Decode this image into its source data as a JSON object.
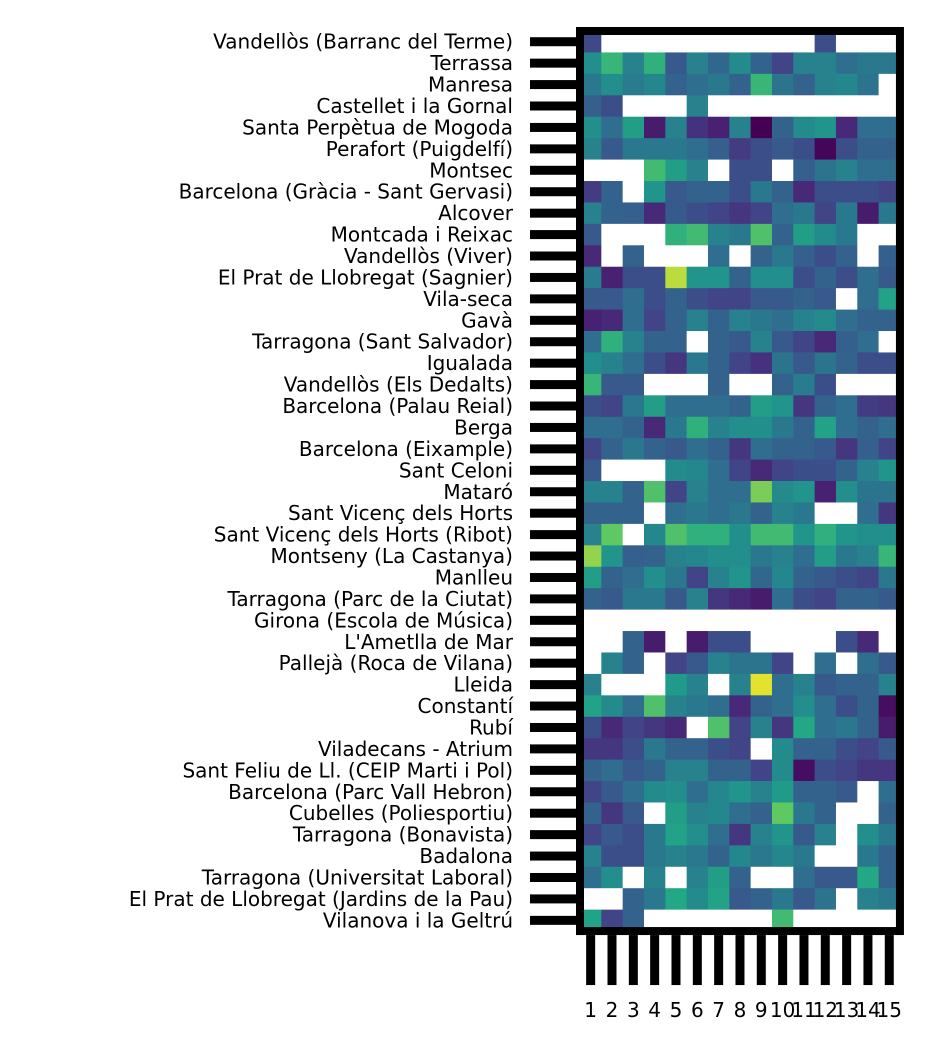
{
  "chart_data": {
    "type": "heatmap",
    "title": "",
    "xlabel": "",
    "ylabel": "",
    "colormap": "viridis",
    "missing_color": "#ffffff",
    "frame_color": "#000000",
    "grid": false,
    "legend": "none",
    "value_range": [
      0,
      1
    ],
    "value_scale_note": "relative intensity 0=dark purple, 1=yellow",
    "x_categories": [
      "1",
      "2",
      "3",
      "4",
      "5",
      "6",
      "7",
      "8",
      "9",
      "10",
      "11",
      "12",
      "13",
      "14",
      "15"
    ],
    "y_categories": [
      "Vandellòs (Barranc del Terme)",
      "Terrassa",
      "Manresa",
      "Castellet i la Gornal",
      "Santa Perpètua de Mogoda",
      "Perafort (Puigdelfí)",
      "Montsec",
      "Barcelona (Gràcia - Sant Gervasi)",
      "Alcover",
      "Montcada i Reixac",
      "Vandellòs (Viver)",
      "El Prat de Llobregat (Sagnier)",
      "Vila-seca",
      "Gavà",
      "Tarragona (Sant Salvador)",
      "Igualada",
      "Vandellòs (Els Dedalts)",
      "Barcelona (Palau Reial)",
      "Berga",
      "Barcelona (Eixample)",
      "Sant Celoni",
      "Mataró",
      "Sant Vicenç dels Horts",
      "Sant Vicenç dels Horts (Ribot)",
      "Montseny (La Castanya)",
      "Manlleu",
      "Tarragona (Parc de la Ciutat)",
      "Girona (Escola de Música)",
      "L'Ametlla de Mar",
      "Pallejà (Roca de Vilana)",
      "Lleida",
      "Constantí",
      "Rubí",
      "Viladecans - Atrium",
      "Sant Feliu de Ll. (CEIP Marti i Pol)",
      "Barcelona (Parc Vall Hebron)",
      "Cubelles (Poliesportiu)",
      "Tarragona (Bonavista)",
      "Badalona",
      "Tarragona (Universitat Laboral)",
      "El Prat de Llobregat (Jardins de la Pau)",
      "Vilanova i la Geltrú"
    ],
    "values": [
      [
        0.28,
        null,
        null,
        null,
        null,
        null,
        null,
        null,
        null,
        null,
        null,
        0.3,
        null,
        null,
        null
      ],
      [
        0.62,
        0.8,
        0.55,
        0.78,
        0.35,
        0.55,
        0.42,
        0.6,
        0.4,
        0.25,
        0.55,
        0.55,
        0.45,
        0.5,
        0.5
      ],
      [
        0.5,
        0.62,
        0.52,
        0.58,
        0.4,
        0.45,
        0.5,
        0.4,
        0.8,
        0.48,
        0.4,
        0.55,
        0.58,
        0.48,
        null
      ],
      [
        0.38,
        0.3,
        null,
        null,
        null,
        0.55,
        null,
        null,
        null,
        null,
        null,
        null,
        null,
        null,
        null
      ],
      [
        0.62,
        0.45,
        0.7,
        0.1,
        0.55,
        0.18,
        0.12,
        0.55,
        0.0,
        0.4,
        0.6,
        0.65,
        0.15,
        0.45,
        0.45
      ],
      [
        0.55,
        0.35,
        0.5,
        0.5,
        0.5,
        0.45,
        0.38,
        0.22,
        0.3,
        0.35,
        0.3,
        0.02,
        0.3,
        0.4,
        0.4
      ],
      [
        null,
        null,
        null,
        0.82,
        0.7,
        0.55,
        null,
        0.3,
        0.3,
        null,
        0.38,
        0.48,
        0.55,
        0.45,
        0.45
      ],
      [
        0.22,
        0.4,
        null,
        0.65,
        0.35,
        0.4,
        0.4,
        0.3,
        0.5,
        0.4,
        0.15,
        0.3,
        0.3,
        0.3,
        0.25
      ],
      [
        0.55,
        0.4,
        0.38,
        0.15,
        0.35,
        0.3,
        0.25,
        0.2,
        0.25,
        0.45,
        0.5,
        0.25,
        0.5,
        0.1,
        0.5
      ],
      [
        0.35,
        null,
        null,
        null,
        0.78,
        0.82,
        0.55,
        0.5,
        0.85,
        0.4,
        0.7,
        0.6,
        0.5,
        null,
        null
      ],
      [
        0.15,
        null,
        0.4,
        null,
        null,
        null,
        0.45,
        null,
        0.4,
        0.5,
        0.38,
        0.3,
        0.4,
        null,
        0.38
      ],
      [
        0.52,
        0.12,
        0.3,
        0.3,
        0.95,
        0.65,
        0.65,
        0.4,
        0.62,
        0.62,
        0.3,
        0.4,
        0.3,
        0.45,
        0.35
      ],
      [
        0.35,
        0.35,
        0.45,
        0.3,
        0.4,
        0.3,
        0.25,
        0.25,
        0.35,
        0.35,
        0.4,
        0.35,
        null,
        0.45,
        0.72
      ],
      [
        0.12,
        0.15,
        0.45,
        0.25,
        0.4,
        0.55,
        0.4,
        0.55,
        0.5,
        0.45,
        0.55,
        0.6,
        0.45,
        0.4,
        0.4
      ],
      [
        0.45,
        0.78,
        0.55,
        0.4,
        0.4,
        null,
        0.4,
        0.35,
        0.55,
        0.35,
        0.25,
        0.15,
        0.38,
        0.45,
        null
      ],
      [
        0.62,
        0.55,
        0.45,
        0.3,
        0.2,
        0.5,
        0.4,
        0.25,
        0.18,
        0.48,
        0.35,
        0.48,
        0.4,
        0.3,
        0.3
      ],
      [
        0.8,
        0.35,
        0.35,
        null,
        null,
        null,
        0.4,
        null,
        null,
        0.4,
        0.52,
        0.3,
        null,
        null,
        null
      ],
      [
        0.3,
        0.25,
        0.5,
        0.7,
        0.45,
        0.45,
        0.45,
        0.4,
        0.7,
        0.65,
        0.2,
        0.4,
        0.45,
        0.22,
        0.2
      ],
      [
        0.45,
        0.45,
        0.4,
        0.15,
        0.5,
        0.78,
        0.55,
        0.62,
        0.62,
        0.5,
        0.4,
        0.72,
        0.45,
        0.4,
        0.45
      ],
      [
        0.25,
        0.4,
        0.5,
        0.4,
        0.35,
        0.45,
        0.4,
        0.2,
        0.45,
        0.4,
        0.4,
        0.35,
        0.2,
        0.38,
        0.25
      ],
      [
        0.35,
        null,
        null,
        null,
        0.6,
        0.58,
        0.45,
        0.25,
        0.15,
        0.25,
        0.3,
        0.3,
        0.4,
        0.55,
        0.65
      ],
      [
        0.55,
        0.55,
        0.4,
        0.85,
        0.25,
        0.55,
        0.45,
        0.45,
        0.9,
        0.6,
        0.65,
        0.12,
        0.62,
        0.48,
        0.48
      ],
      [
        0.4,
        0.4,
        0.4,
        null,
        0.45,
        0.5,
        0.45,
        0.5,
        0.4,
        0.55,
        0.5,
        null,
        null,
        0.45,
        0.2
      ],
      [
        0.55,
        0.88,
        null,
        0.58,
        0.85,
        0.78,
        0.78,
        0.62,
        0.82,
        0.82,
        0.65,
        0.78,
        0.65,
        0.62,
        0.62
      ],
      [
        0.92,
        0.65,
        0.38,
        0.4,
        0.55,
        0.58,
        0.62,
        0.62,
        0.5,
        0.55,
        0.45,
        0.7,
        0.5,
        0.55,
        0.8
      ],
      [
        0.7,
        0.4,
        0.45,
        0.62,
        0.5,
        0.25,
        0.55,
        0.65,
        0.42,
        0.58,
        0.4,
        0.35,
        0.3,
        0.25,
        0.5
      ],
      [
        0.4,
        0.35,
        0.5,
        0.5,
        0.35,
        0.55,
        0.2,
        0.15,
        0.1,
        0.45,
        0.3,
        0.25,
        0.4,
        0.4,
        0.35
      ],
      [
        null,
        null,
        null,
        null,
        null,
        null,
        null,
        null,
        null,
        null,
        null,
        null,
        null,
        null,
        null
      ],
      [
        null,
        null,
        0.4,
        0.1,
        null,
        0.1,
        0.3,
        0.3,
        null,
        null,
        null,
        null,
        0.3,
        0.15,
        null
      ],
      [
        null,
        0.55,
        0.4,
        null,
        0.25,
        0.35,
        0.55,
        0.48,
        0.48,
        0.25,
        null,
        0.45,
        null,
        0.45,
        0.35
      ],
      [
        0.55,
        null,
        null,
        null,
        0.68,
        0.55,
        null,
        0.55,
        0.98,
        0.45,
        0.55,
        0.35,
        0.4,
        0.4,
        0.55
      ],
      [
        0.72,
        0.6,
        0.45,
        0.85,
        0.55,
        0.5,
        0.45,
        0.15,
        0.4,
        0.45,
        0.62,
        0.45,
        0.3,
        0.4,
        0.05
      ],
      [
        0.3,
        0.15,
        0.25,
        0.2,
        0.15,
        null,
        0.85,
        0.25,
        0.55,
        0.2,
        0.75,
        0.45,
        0.5,
        0.4,
        0.1
      ],
      [
        0.2,
        0.2,
        0.3,
        0.5,
        0.4,
        0.4,
        0.3,
        0.25,
        null,
        0.6,
        0.4,
        0.4,
        0.3,
        0.25,
        0.35
      ],
      [
        0.4,
        0.45,
        0.35,
        0.4,
        0.55,
        0.55,
        0.4,
        0.4,
        0.25,
        0.6,
        0.05,
        0.3,
        0.25,
        0.2,
        0.2
      ],
      [
        0.25,
        0.35,
        0.45,
        0.6,
        0.62,
        0.45,
        0.58,
        0.65,
        0.55,
        0.68,
        0.4,
        0.4,
        0.35,
        null,
        0.45
      ],
      [
        0.4,
        0.2,
        0.35,
        null,
        0.7,
        0.55,
        0.58,
        0.45,
        0.4,
        0.88,
        0.5,
        0.4,
        null,
        null,
        0.4
      ],
      [
        0.25,
        0.35,
        0.3,
        0.5,
        0.72,
        0.62,
        0.45,
        0.2,
        0.55,
        0.65,
        0.35,
        0.55,
        null,
        0.62,
        0.5
      ],
      [
        0.55,
        0.3,
        0.3,
        0.5,
        0.55,
        0.5,
        0.4,
        0.58,
        0.5,
        0.58,
        0.5,
        null,
        null,
        0.5,
        0.4
      ],
      [
        0.45,
        0.62,
        null,
        0.55,
        null,
        0.55,
        0.7,
        0.4,
        null,
        null,
        0.45,
        0.35,
        0.35,
        0.75,
        0.4
      ],
      [
        null,
        null,
        0.4,
        0.5,
        0.75,
        0.6,
        0.72,
        0.35,
        0.4,
        0.5,
        0.35,
        0.48,
        null,
        0.55,
        0.5
      ],
      [
        0.72,
        0.25,
        0.4,
        null,
        null,
        null,
        null,
        null,
        null,
        0.82,
        null,
        null,
        null,
        null,
        null
      ]
    ]
  }
}
